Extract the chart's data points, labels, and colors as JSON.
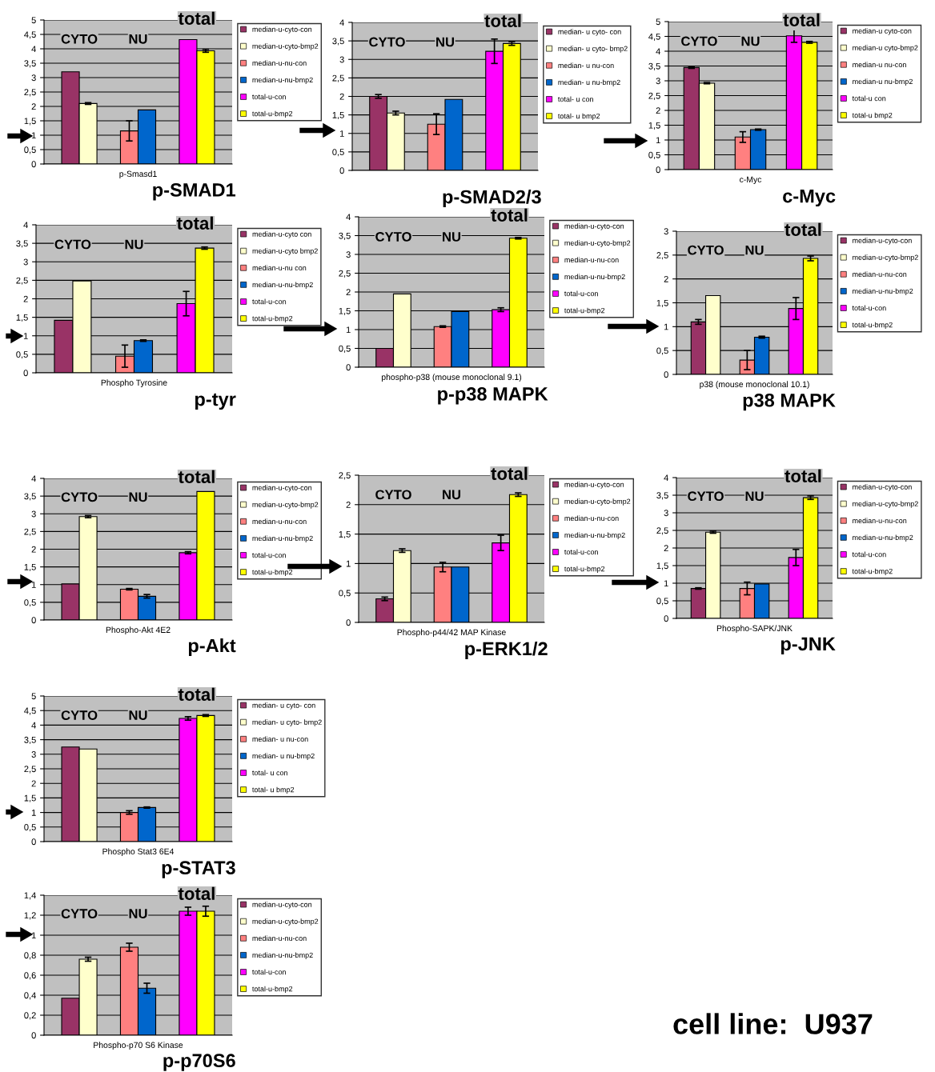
{
  "chart_data": [
    {
      "type": "bar",
      "title": "p-SMAD1",
      "xlabel": "p-Smasd1",
      "categories": [
        "CYTO",
        "NU",
        "total"
      ],
      "ylim": [
        0,
        5
      ],
      "yticks": [
        0,
        {
          "value": 0.5,
          "label": "0,5"
        },
        1,
        {
          "value": 1.5,
          "label": "1,5"
        },
        2,
        {
          "value": 2.5,
          "label": "2,5"
        },
        3,
        {
          "value": 3.5,
          "label": "3,5"
        },
        4,
        {
          "value": 4.5,
          "label": "4,5"
        },
        5
      ],
      "grid": "y",
      "legend": "right",
      "series": [
        {
          "name": "median-u-cyto-con",
          "color": "#993366",
          "values": [
            3.2,
            null,
            null
          ]
        },
        {
          "name": "median-u-cyto-bmp2",
          "color": "#ffffcc",
          "values": [
            2.1,
            null,
            null
          ],
          "errors": [
            0.03,
            null,
            null
          ]
        },
        {
          "name": "median-u-nu-con",
          "color": "#ff8080",
          "values": [
            null,
            1.15,
            null
          ],
          "errors": [
            null,
            0.35,
            null
          ]
        },
        {
          "name": "median-u-nu-bmp2",
          "color": "#0066cc",
          "values": [
            null,
            1.88,
            null
          ]
        },
        {
          "name": "total-u-con",
          "color": "#ff00ff",
          "values": [
            null,
            null,
            4.32
          ]
        },
        {
          "name": "total-u-bmp2",
          "color": "#ffff00",
          "values": [
            null,
            null,
            3.93
          ],
          "errors": [
            null,
            null,
            0.05
          ]
        }
      ]
    },
    {
      "type": "bar",
      "title": "p-SMAD2/3",
      "categories": [
        "CYTO",
        "NU",
        "total"
      ],
      "ylim": [
        0,
        4
      ],
      "yticks": [
        0,
        {
          "value": 0.5,
          "label": "0,5"
        },
        1,
        {
          "value": 1.5,
          "label": "1,5"
        },
        2,
        {
          "value": 2.5,
          "label": "2,5"
        },
        3,
        {
          "value": 3.5,
          "label": "3,5"
        },
        4
      ],
      "grid": "y",
      "legend": "right",
      "series": [
        {
          "name": "median- u cyto- con",
          "color": "#993366",
          "values": [
            2.0,
            null,
            null
          ],
          "errors": [
            0.05,
            null,
            null
          ]
        },
        {
          "name": "median- u cyto- bmp2",
          "color": "#ffffcc",
          "values": [
            1.55,
            null,
            null
          ],
          "errors": [
            0.05,
            null,
            null
          ]
        },
        {
          "name": "median- u nu-con",
          "color": "#ff8080",
          "values": [
            null,
            1.25,
            null
          ],
          "errors": [
            null,
            0.28,
            null
          ]
        },
        {
          "name": "median- u nu-bmp2",
          "color": "#0066cc",
          "values": [
            null,
            1.92,
            null
          ]
        },
        {
          "name": "total- u con",
          "color": "#ff00ff",
          "values": [
            null,
            null,
            3.22
          ],
          "errors": [
            null,
            null,
            0.33
          ]
        },
        {
          "name": "total- u bmp2",
          "color": "#ffff00",
          "values": [
            null,
            null,
            3.43
          ],
          "errors": [
            null,
            null,
            0.05
          ]
        }
      ]
    },
    {
      "type": "bar",
      "title": "c-Myc",
      "xlabel": "c-Myc",
      "categories": [
        "CYTO",
        "NU",
        "total"
      ],
      "ylim": [
        0,
        5
      ],
      "yticks": [
        0,
        {
          "value": 0.5,
          "label": "0,5"
        },
        1,
        {
          "value": 1.5,
          "label": "1,5"
        },
        2,
        {
          "value": 2.5,
          "label": "2,5"
        },
        3,
        {
          "value": 3.5,
          "label": "3,5"
        },
        4,
        {
          "value": 4.5,
          "label": "4,5"
        },
        5
      ],
      "grid": "y",
      "legend": "right",
      "series": [
        {
          "name": "median-u cyto-con",
          "color": "#993366",
          "values": [
            3.45,
            null,
            null
          ],
          "errors": [
            0.03,
            null,
            null
          ]
        },
        {
          "name": "median-u cyto-bmp2",
          "color": "#ffffcc",
          "values": [
            2.92,
            null,
            null
          ],
          "errors": [
            0.02,
            null,
            null
          ]
        },
        {
          "name": "median-u nu-con",
          "color": "#ff8080",
          "values": [
            null,
            1.1,
            null
          ],
          "errors": [
            null,
            0.18,
            null
          ]
        },
        {
          "name": "median-u nu-bmp2",
          "color": "#0066cc",
          "values": [
            null,
            1.35,
            null
          ],
          "errors": [
            null,
            0.02,
            null
          ]
        },
        {
          "name": "total-u con",
          "color": "#ff00ff",
          "values": [
            null,
            null,
            4.52
          ],
          "errors": [
            null,
            null,
            0.22
          ]
        },
        {
          "name": "total-u bmp2",
          "color": "#ffff00",
          "values": [
            null,
            null,
            4.3
          ],
          "errors": [
            null,
            null,
            0.03
          ]
        }
      ]
    },
    {
      "type": "bar",
      "title": "p-tyr",
      "xlabel": "Phospho Tyrosine",
      "categories": [
        "CYTO",
        "NU",
        "total"
      ],
      "ylim": [
        0,
        4
      ],
      "yticks": [
        0,
        {
          "value": 0.5,
          "label": "0,5"
        },
        1,
        {
          "value": 1.5,
          "label": "1,5"
        },
        2,
        {
          "value": 2.5,
          "label": "2,5"
        },
        3,
        {
          "value": 3.5,
          "label": "3,5"
        },
        4
      ],
      "grid": "y",
      "legend": "right",
      "series": [
        {
          "name": "median-u-cyto con",
          "color": "#993366",
          "values": [
            1.42,
            null,
            null
          ]
        },
        {
          "name": "median-u-cyto bmp2",
          "color": "#ffffcc",
          "values": [
            2.48,
            null,
            null
          ]
        },
        {
          "name": "median-u-nu con",
          "color": "#ff8080",
          "values": [
            null,
            0.45,
            null
          ],
          "errors": [
            null,
            0.3,
            null
          ]
        },
        {
          "name": "median-u-nu-bmp2",
          "color": "#0066cc",
          "values": [
            null,
            0.87,
            null
          ],
          "errors": [
            null,
            0.02,
            null
          ]
        },
        {
          "name": "total-u-con",
          "color": "#ff00ff",
          "values": [
            null,
            null,
            1.87
          ],
          "errors": [
            null,
            null,
            0.33
          ]
        },
        {
          "name": "total-u-bmp2",
          "color": "#ffff00",
          "values": [
            null,
            null,
            3.37
          ],
          "errors": [
            null,
            null,
            0.03
          ]
        }
      ]
    },
    {
      "type": "bar",
      "title": "p-p38 MAPK",
      "xlabel": "phospho-p38 (mouse monoclonal 9.1)",
      "categories": [
        "CYTO",
        "NU",
        "total"
      ],
      "ylim": [
        0,
        4
      ],
      "yticks": [
        0,
        {
          "value": 0.5,
          "label": "0,5"
        },
        1,
        {
          "value": 1.5,
          "label": "1,5"
        },
        2,
        {
          "value": 2.5,
          "label": "2,5"
        },
        3,
        {
          "value": 3.5,
          "label": "3,5"
        },
        4
      ],
      "grid": "y",
      "legend": "right",
      "series": [
        {
          "name": "median-u-cyto-con",
          "color": "#993366",
          "values": [
            0.5,
            null,
            null
          ]
        },
        {
          "name": "median-u-cyto-bmp2",
          "color": "#ffffcc",
          "values": [
            1.95,
            null,
            null
          ]
        },
        {
          "name": "median-u-nu-con",
          "color": "#ff8080",
          "values": [
            null,
            1.08,
            null
          ],
          "errors": [
            null,
            0.02,
            null
          ]
        },
        {
          "name": "median-u-nu-bmp2",
          "color": "#0066cc",
          "values": [
            null,
            1.48,
            null
          ]
        },
        {
          "name": "total-u-con",
          "color": "#ff00ff",
          "values": [
            null,
            null,
            1.53
          ],
          "errors": [
            null,
            null,
            0.05
          ]
        },
        {
          "name": "total-u-bmp2",
          "color": "#ffff00",
          "values": [
            null,
            null,
            3.43
          ],
          "errors": [
            null,
            null,
            0.02
          ]
        }
      ]
    },
    {
      "type": "bar",
      "title": "p38 MAPK",
      "xlabel": "p38 (mouse monoclonal 10.1)",
      "categories": [
        "CYTO",
        "NU",
        "total"
      ],
      "ylim": [
        0,
        3
      ],
      "yticks": [
        0,
        {
          "value": 0.5,
          "label": "0,5"
        },
        1,
        {
          "value": 1.5,
          "label": "1,5"
        },
        2,
        {
          "value": 2.5,
          "label": "2,5"
        },
        3
      ],
      "grid": "y",
      "legend": "right",
      "series": [
        {
          "name": "median-u-cyto-con",
          "color": "#993366",
          "values": [
            1.1,
            null,
            null
          ],
          "errors": [
            0.05,
            null,
            null
          ]
        },
        {
          "name": "median-u-cyto-bmp2",
          "color": "#ffffcc",
          "values": [
            1.65,
            null,
            null
          ]
        },
        {
          "name": "median-u-nu-con",
          "color": "#ff8080",
          "values": [
            null,
            0.3,
            null
          ],
          "errors": [
            null,
            0.2,
            null
          ]
        },
        {
          "name": "median-u-nu-bmp2",
          "color": "#0066cc",
          "values": [
            null,
            0.78,
            null
          ],
          "errors": [
            null,
            0.02,
            null
          ]
        },
        {
          "name": "total-u-con",
          "color": "#ff00ff",
          "values": [
            null,
            null,
            1.38
          ],
          "errors": [
            null,
            null,
            0.23
          ]
        },
        {
          "name": "total-u-bmp2",
          "color": "#ffff00",
          "values": [
            null,
            null,
            2.43
          ],
          "errors": [
            null,
            null,
            0.05
          ]
        }
      ]
    },
    {
      "type": "bar",
      "title": "p-Akt",
      "xlabel": "Phospho-Akt 4E2",
      "categories": [
        "CYTO",
        "NU",
        "total"
      ],
      "ylim": [
        0,
        4
      ],
      "yticks": [
        0,
        {
          "value": 0.5,
          "label": "0,5"
        },
        1,
        {
          "value": 1.5,
          "label": "1,5"
        },
        2,
        {
          "value": 2.5,
          "label": "2,5"
        },
        3,
        {
          "value": 3.5,
          "label": "3,5"
        },
        4
      ],
      "grid": "y",
      "legend": "right",
      "series": [
        {
          "name": "median-u-cyto-con",
          "color": "#993366",
          "values": [
            1.02,
            null,
            null
          ]
        },
        {
          "name": "median-u-cyto-bmp2",
          "color": "#ffffcc",
          "values": [
            2.92,
            null,
            null
          ],
          "errors": [
            0.03,
            null,
            null
          ]
        },
        {
          "name": "median-u-nu-con",
          "color": "#ff8080",
          "values": [
            null,
            0.87,
            null
          ],
          "errors": [
            null,
            0.02,
            null
          ]
        },
        {
          "name": "median-u-nu-bmp2",
          "color": "#0066cc",
          "values": [
            null,
            0.67,
            null
          ],
          "errors": [
            null,
            0.05,
            null
          ]
        },
        {
          "name": "total-u-con",
          "color": "#ff00ff",
          "values": [
            null,
            null,
            1.9
          ],
          "errors": [
            null,
            null,
            0.03
          ]
        },
        {
          "name": "total-u-bmp2",
          "color": "#ffff00",
          "values": [
            null,
            null,
            3.63
          ]
        }
      ]
    },
    {
      "type": "bar",
      "title": "p-ERK1/2",
      "xlabel": "Phospho-p44/42 MAP Kinase",
      "categories": [
        "CYTO",
        "NU",
        "total"
      ],
      "ylim": [
        0,
        2.5
      ],
      "yticks": [
        0,
        {
          "value": 0.5,
          "label": "0,5"
        },
        1,
        {
          "value": 1.5,
          "label": "1,5"
        },
        2,
        {
          "value": 2.5,
          "label": "2,5"
        }
      ],
      "grid": "y",
      "legend": "right",
      "series": [
        {
          "name": "median-u-cyto-con",
          "color": "#993366",
          "values": [
            0.4,
            null,
            null
          ],
          "errors": [
            0.03,
            null,
            null
          ]
        },
        {
          "name": "median-u-cyto-bmp2",
          "color": "#ffffcc",
          "values": [
            1.22,
            null,
            null
          ],
          "errors": [
            0.03,
            null,
            null
          ]
        },
        {
          "name": "median-u-nu-con",
          "color": "#ff8080",
          "values": [
            null,
            0.94,
            null
          ],
          "errors": [
            null,
            0.08,
            null
          ]
        },
        {
          "name": "median-u-nu-bmp2",
          "color": "#0066cc",
          "values": [
            null,
            0.94,
            null
          ]
        },
        {
          "name": "total-u-con",
          "color": "#ff00ff",
          "values": [
            null,
            null,
            1.35
          ],
          "errors": [
            null,
            null,
            0.13
          ]
        },
        {
          "name": "total-u-bmp2",
          "color": "#ffff00",
          "values": [
            null,
            null,
            2.17
          ],
          "errors": [
            null,
            null,
            0.03
          ]
        }
      ]
    },
    {
      "type": "bar",
      "title": "p-JNK",
      "xlabel": "Phospho-SAPK/JNK",
      "categories": [
        "CYTO",
        "NU",
        "total"
      ],
      "ylim": [
        0,
        4
      ],
      "yticks": [
        0,
        {
          "value": 0.5,
          "label": "0,5"
        },
        1,
        {
          "value": 1.5,
          "label": "1,5"
        },
        2,
        {
          "value": 2.5,
          "label": "2,5"
        },
        3,
        {
          "value": 3.5,
          "label": "3,5"
        },
        4
      ],
      "grid": "y",
      "legend": "right",
      "series": [
        {
          "name": "median-u-cyto-con",
          "color": "#993366",
          "values": [
            0.85,
            null,
            null
          ],
          "errors": [
            0.02,
            null,
            null
          ]
        },
        {
          "name": "median-u-cyto-bmp2",
          "color": "#ffffcc",
          "values": [
            2.45,
            null,
            null
          ],
          "errors": [
            0.03,
            null,
            null
          ]
        },
        {
          "name": "median-u-nu-con",
          "color": "#ff8080",
          "values": [
            null,
            0.85,
            null
          ],
          "errors": [
            null,
            0.18,
            null
          ]
        },
        {
          "name": "median-u-nu-bmp2",
          "color": "#0066cc",
          "values": [
            null,
            0.98,
            null
          ]
        },
        {
          "name": "total-u-con",
          "color": "#ff00ff",
          "values": [
            null,
            null,
            1.73
          ],
          "errors": [
            null,
            null,
            0.23
          ]
        },
        {
          "name": "total-u-bmp2",
          "color": "#ffff00",
          "values": [
            null,
            null,
            3.43
          ],
          "errors": [
            null,
            null,
            0.05
          ]
        }
      ]
    },
    {
      "type": "bar",
      "title": "p-STAT3",
      "xlabel": "Phospho Stat3 6E4",
      "categories": [
        "CYTO",
        "NU",
        "total"
      ],
      "ylim": [
        0,
        5
      ],
      "yticks": [
        0,
        {
          "value": 0.5,
          "label": "0,5"
        },
        1,
        {
          "value": 1.5,
          "label": "1,5"
        },
        2,
        {
          "value": 2.5,
          "label": "2,5"
        },
        3,
        {
          "value": 3.5,
          "label": "3,5"
        },
        4,
        {
          "value": 4.5,
          "label": "4,5"
        },
        5
      ],
      "grid": "y",
      "legend": "right",
      "series": [
        {
          "name": "median- u cyto- con",
          "color": "#993366",
          "values": [
            3.25,
            null,
            null
          ]
        },
        {
          "name": "median- u cyto- bmp2",
          "color": "#ffffcc",
          "values": [
            3.18,
            null,
            null
          ]
        },
        {
          "name": "median- u nu-con",
          "color": "#ff8080",
          "values": [
            null,
            1.0,
            null
          ],
          "errors": [
            null,
            0.06,
            null
          ]
        },
        {
          "name": "median- u nu-bmp2",
          "color": "#0066cc",
          "values": [
            null,
            1.17,
            null
          ],
          "errors": [
            null,
            0.02,
            null
          ]
        },
        {
          "name": "total- u con",
          "color": "#ff00ff",
          "values": [
            null,
            null,
            4.23
          ],
          "errors": [
            null,
            null,
            0.06
          ]
        },
        {
          "name": "total- u bmp2",
          "color": "#ffff00",
          "values": [
            null,
            null,
            4.33
          ],
          "errors": [
            null,
            null,
            0.03
          ]
        }
      ]
    },
    {
      "type": "bar",
      "title": "p-p70S6",
      "xlabel": "Phospho-p70 S6 Kinase",
      "categories": [
        "CYTO",
        "NU",
        "total"
      ],
      "ylim": [
        0,
        1.4
      ],
      "yticks": [
        0,
        {
          "value": 0.2,
          "label": "0,2"
        },
        {
          "value": 0.4,
          "label": "0,4"
        },
        {
          "value": 0.6,
          "label": "0,6"
        },
        {
          "value": 0.8,
          "label": "0,8"
        },
        1,
        {
          "value": 1.2,
          "label": "1,2"
        },
        {
          "value": 1.4,
          "label": "1,4"
        }
      ],
      "grid": "y",
      "legend": "right",
      "annotations": [
        "cell line:  U937"
      ],
      "series": [
        {
          "name": "median-u-cyto-con",
          "color": "#993366",
          "values": [
            0.37,
            null,
            null
          ]
        },
        {
          "name": "median-u-cyto-bmp2",
          "color": "#ffffcc",
          "values": [
            0.76,
            null,
            null
          ],
          "errors": [
            0.02,
            null,
            null
          ]
        },
        {
          "name": "median-u-nu-con",
          "color": "#ff8080",
          "values": [
            null,
            0.88,
            null
          ],
          "errors": [
            null,
            0.04,
            null
          ]
        },
        {
          "name": "median-u-nu-bmp2",
          "color": "#0066cc",
          "values": [
            null,
            0.47,
            null
          ],
          "errors": [
            null,
            0.05,
            null
          ]
        },
        {
          "name": "total-u-con",
          "color": "#ff00ff",
          "values": [
            null,
            null,
            1.24
          ],
          "errors": [
            null,
            null,
            0.04
          ]
        },
        {
          "name": "total-u-bmp2",
          "color": "#ffff00",
          "values": [
            null,
            null,
            1.24
          ],
          "errors": [
            null,
            null,
            0.05
          ]
        }
      ]
    }
  ]
}
